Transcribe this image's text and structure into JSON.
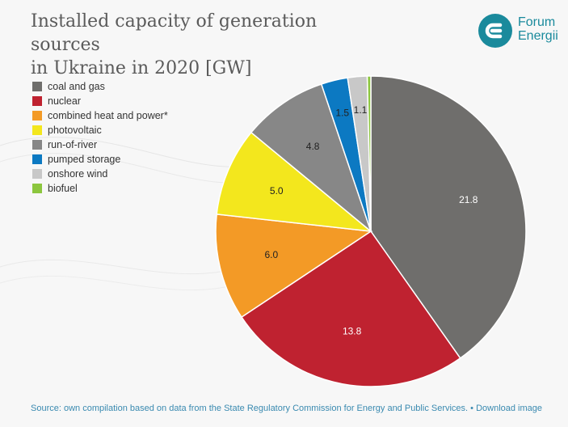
{
  "header": {
    "title_line1": "Installed capacity of generation sources",
    "title_line2": "in Ukraine in 2020 [GW]"
  },
  "logo": {
    "name_line1": "Forum",
    "name_line2": "Energii"
  },
  "footer": {
    "source_text": "Source: own compilation based on data from the State Regulatory Commission for Energy and Public Services.",
    "download_link": "• Download image"
  },
  "colors": {
    "brand": "#1a8a9c",
    "label_dark": "#222222",
    "label_light": "#ffffff"
  },
  "chart_data": {
    "type": "pie",
    "title": "Installed capacity of generation sources in Ukraine in 2020 [GW]",
    "start_angle_deg": 0,
    "direction": "clockwise",
    "legend_position": "left",
    "slices": [
      {
        "label": "coal and gas",
        "value": 21.8,
        "color": "#6f6e6c",
        "value_label": "21.8",
        "label_color": "#ffffff"
      },
      {
        "label": "nuclear",
        "value": 13.8,
        "color": "#bf2230",
        "value_label": "13.8",
        "label_color": "#ffffff"
      },
      {
        "label": "combined heat and power*",
        "value": 6.0,
        "color": "#f39a26",
        "value_label": "6.0",
        "label_color": "#222222"
      },
      {
        "label": "photovoltaic",
        "value": 5.0,
        "color": "#f3e71d",
        "value_label": "5.0",
        "label_color": "#222222"
      },
      {
        "label": "run-of-river",
        "value": 4.8,
        "color": "#878787",
        "value_label": "4.8",
        "label_color": "#222222"
      },
      {
        "label": "pumped storage",
        "value": 1.5,
        "color": "#0c79c2",
        "value_label": "1.5",
        "label_color": "#222222"
      },
      {
        "label": "onshore wind",
        "value": 1.1,
        "color": "#c8c8c8",
        "value_label": "1.1",
        "label_color": "#222222"
      },
      {
        "label": "biofuel",
        "value": 0.2,
        "color": "#8cc63e",
        "value_label": "",
        "label_color": "#222222"
      }
    ]
  }
}
